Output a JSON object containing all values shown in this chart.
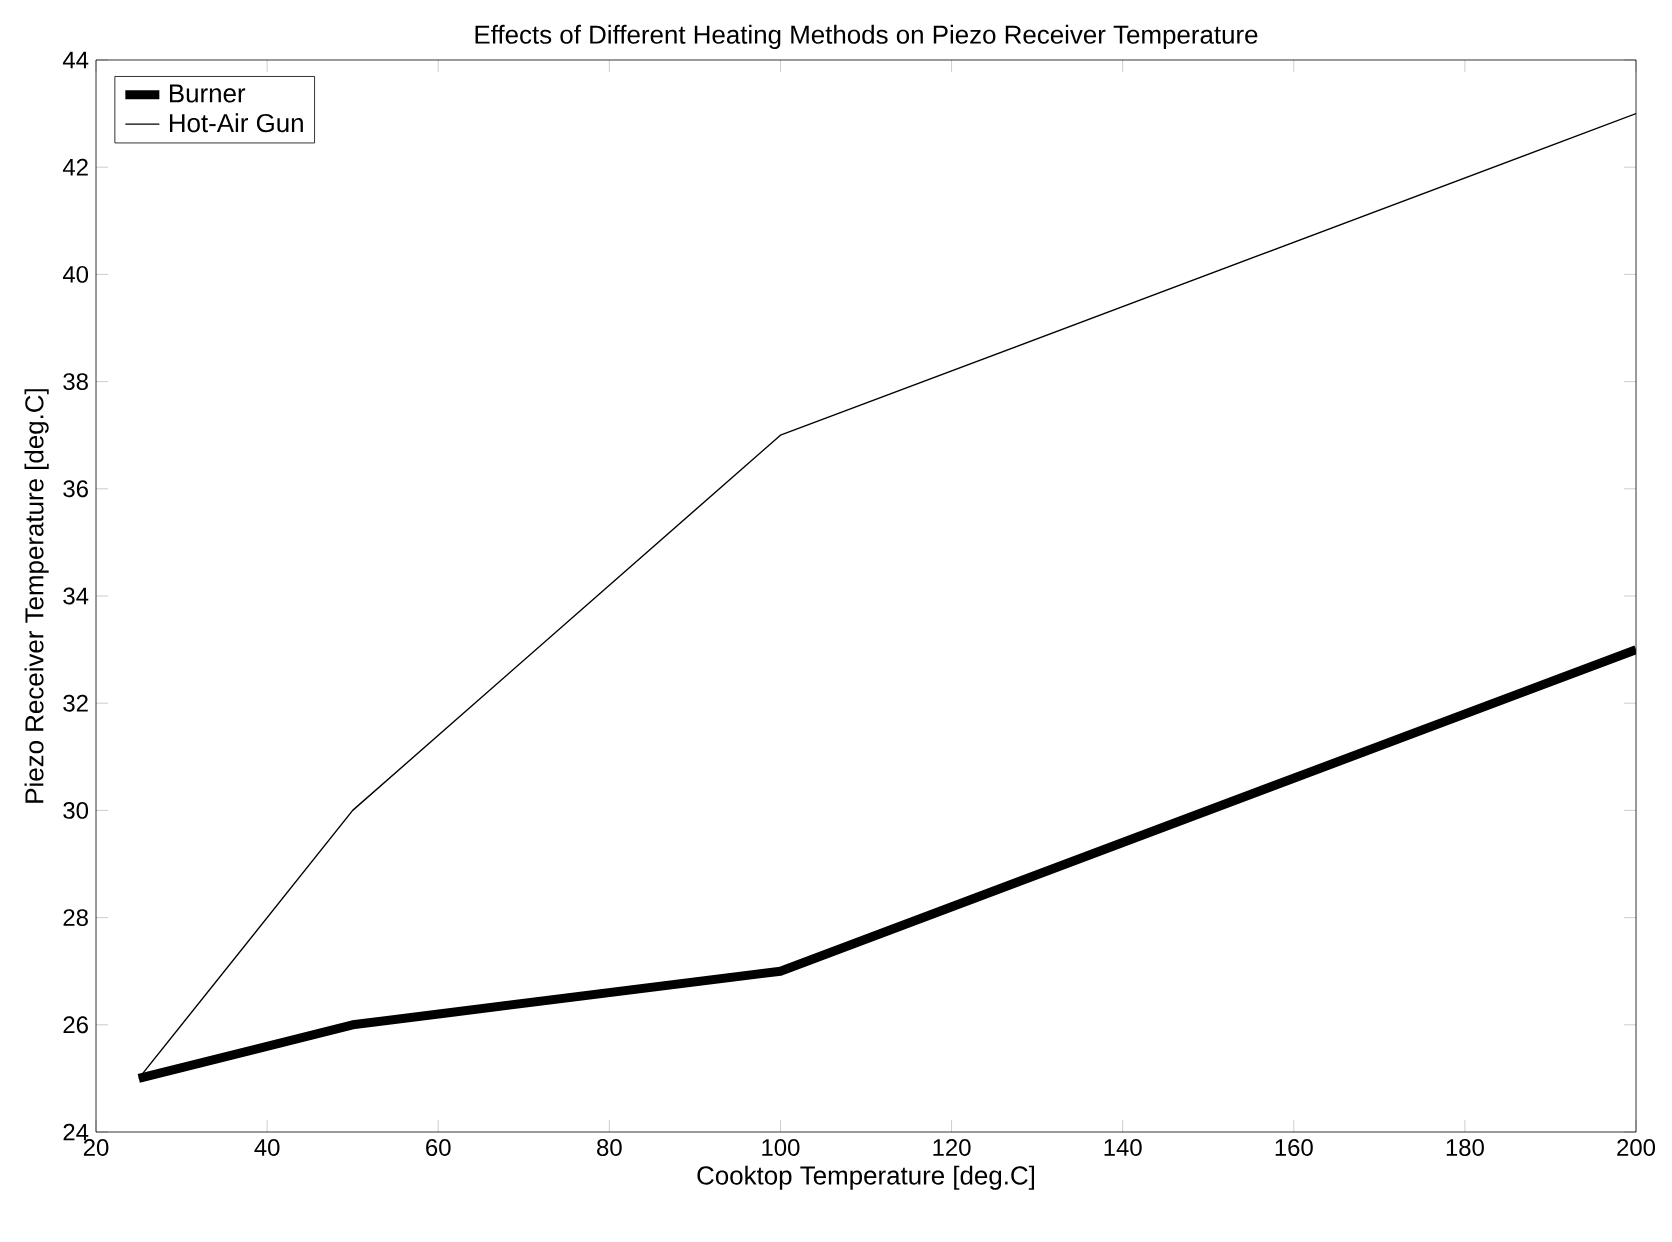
{
  "chart_data": {
    "type": "line",
    "title": "Effects of Different Heating Methods on Piezo Receiver Temperature",
    "xlabel": "Cooktop Temperature [deg.C]",
    "ylabel": "Piezo Receiver Temperature [deg.C]",
    "x": [
      25,
      50,
      100,
      200
    ],
    "series": [
      {
        "name": "Burner",
        "color": "#000000",
        "values": [
          25,
          26,
          27,
          33
        ]
      },
      {
        "name": "Hot-Air Gun",
        "color": "#000000",
        "values": [
          25,
          30,
          37,
          43
        ]
      }
    ],
    "xlim": [
      20,
      200
    ],
    "ylim": [
      24,
      44
    ],
    "xticks": [
      20,
      40,
      60,
      80,
      100,
      120,
      140,
      160,
      180,
      200
    ],
    "yticks": [
      24,
      26,
      28,
      30,
      32,
      34,
      36,
      38,
      40,
      42,
      44
    ],
    "grid": false,
    "legend": "top left",
    "line_style": "solid"
  }
}
